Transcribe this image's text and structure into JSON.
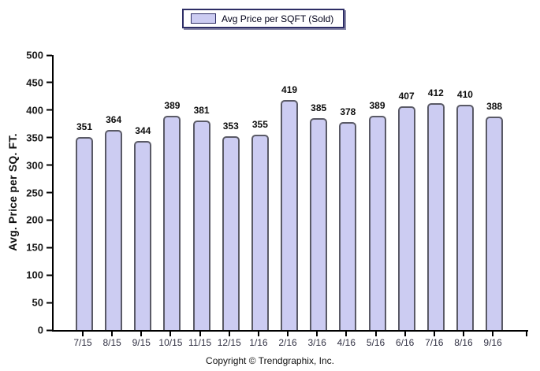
{
  "chart_data": {
    "type": "bar",
    "legend": "Avg Price per SQFT (Sold)",
    "categories": [
      "7/15",
      "8/15",
      "9/15",
      "10/15",
      "11/15",
      "12/15",
      "1/16",
      "2/16",
      "3/16",
      "4/16",
      "5/16",
      "6/16",
      "7/16",
      "8/16",
      "9/16"
    ],
    "values": [
      351,
      364,
      344,
      389,
      381,
      353,
      355,
      419,
      385,
      378,
      389,
      407,
      412,
      410,
      388
    ],
    "title": "",
    "xlabel": "",
    "ylabel": "Avg. Price per SQ. FT.",
    "ylim": [
      0,
      500
    ],
    "ytick_step": 50,
    "grid": false,
    "legend_position": "top-center",
    "footer": "Copyright © Trendgraphix, Inc.",
    "colors": {
      "bar_fill": "#ccccf2",
      "bar_border": "#5a5a66",
      "legend_border": "#2e2e66",
      "axis": "#000000",
      "x_label": "#333345",
      "value_label": "#0d0d0d"
    }
  }
}
